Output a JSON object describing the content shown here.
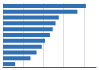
{
  "chart_data": {
    "type": "bar",
    "orientation": "horizontal",
    "categories": [
      null,
      null,
      null,
      null,
      null,
      null,
      null,
      null,
      null,
      null,
      null
    ],
    "values": [
      20.5,
      18.4,
      13.8,
      13.0,
      12.3,
      11.6,
      10.4,
      9.6,
      8.3,
      6.8,
      3.0
    ],
    "color": "#3070b3",
    "xlim": [
      0,
      23
    ],
    "xticks": [
      0,
      5,
      10,
      15,
      20
    ],
    "grid": true,
    "tick_labels": false
  }
}
